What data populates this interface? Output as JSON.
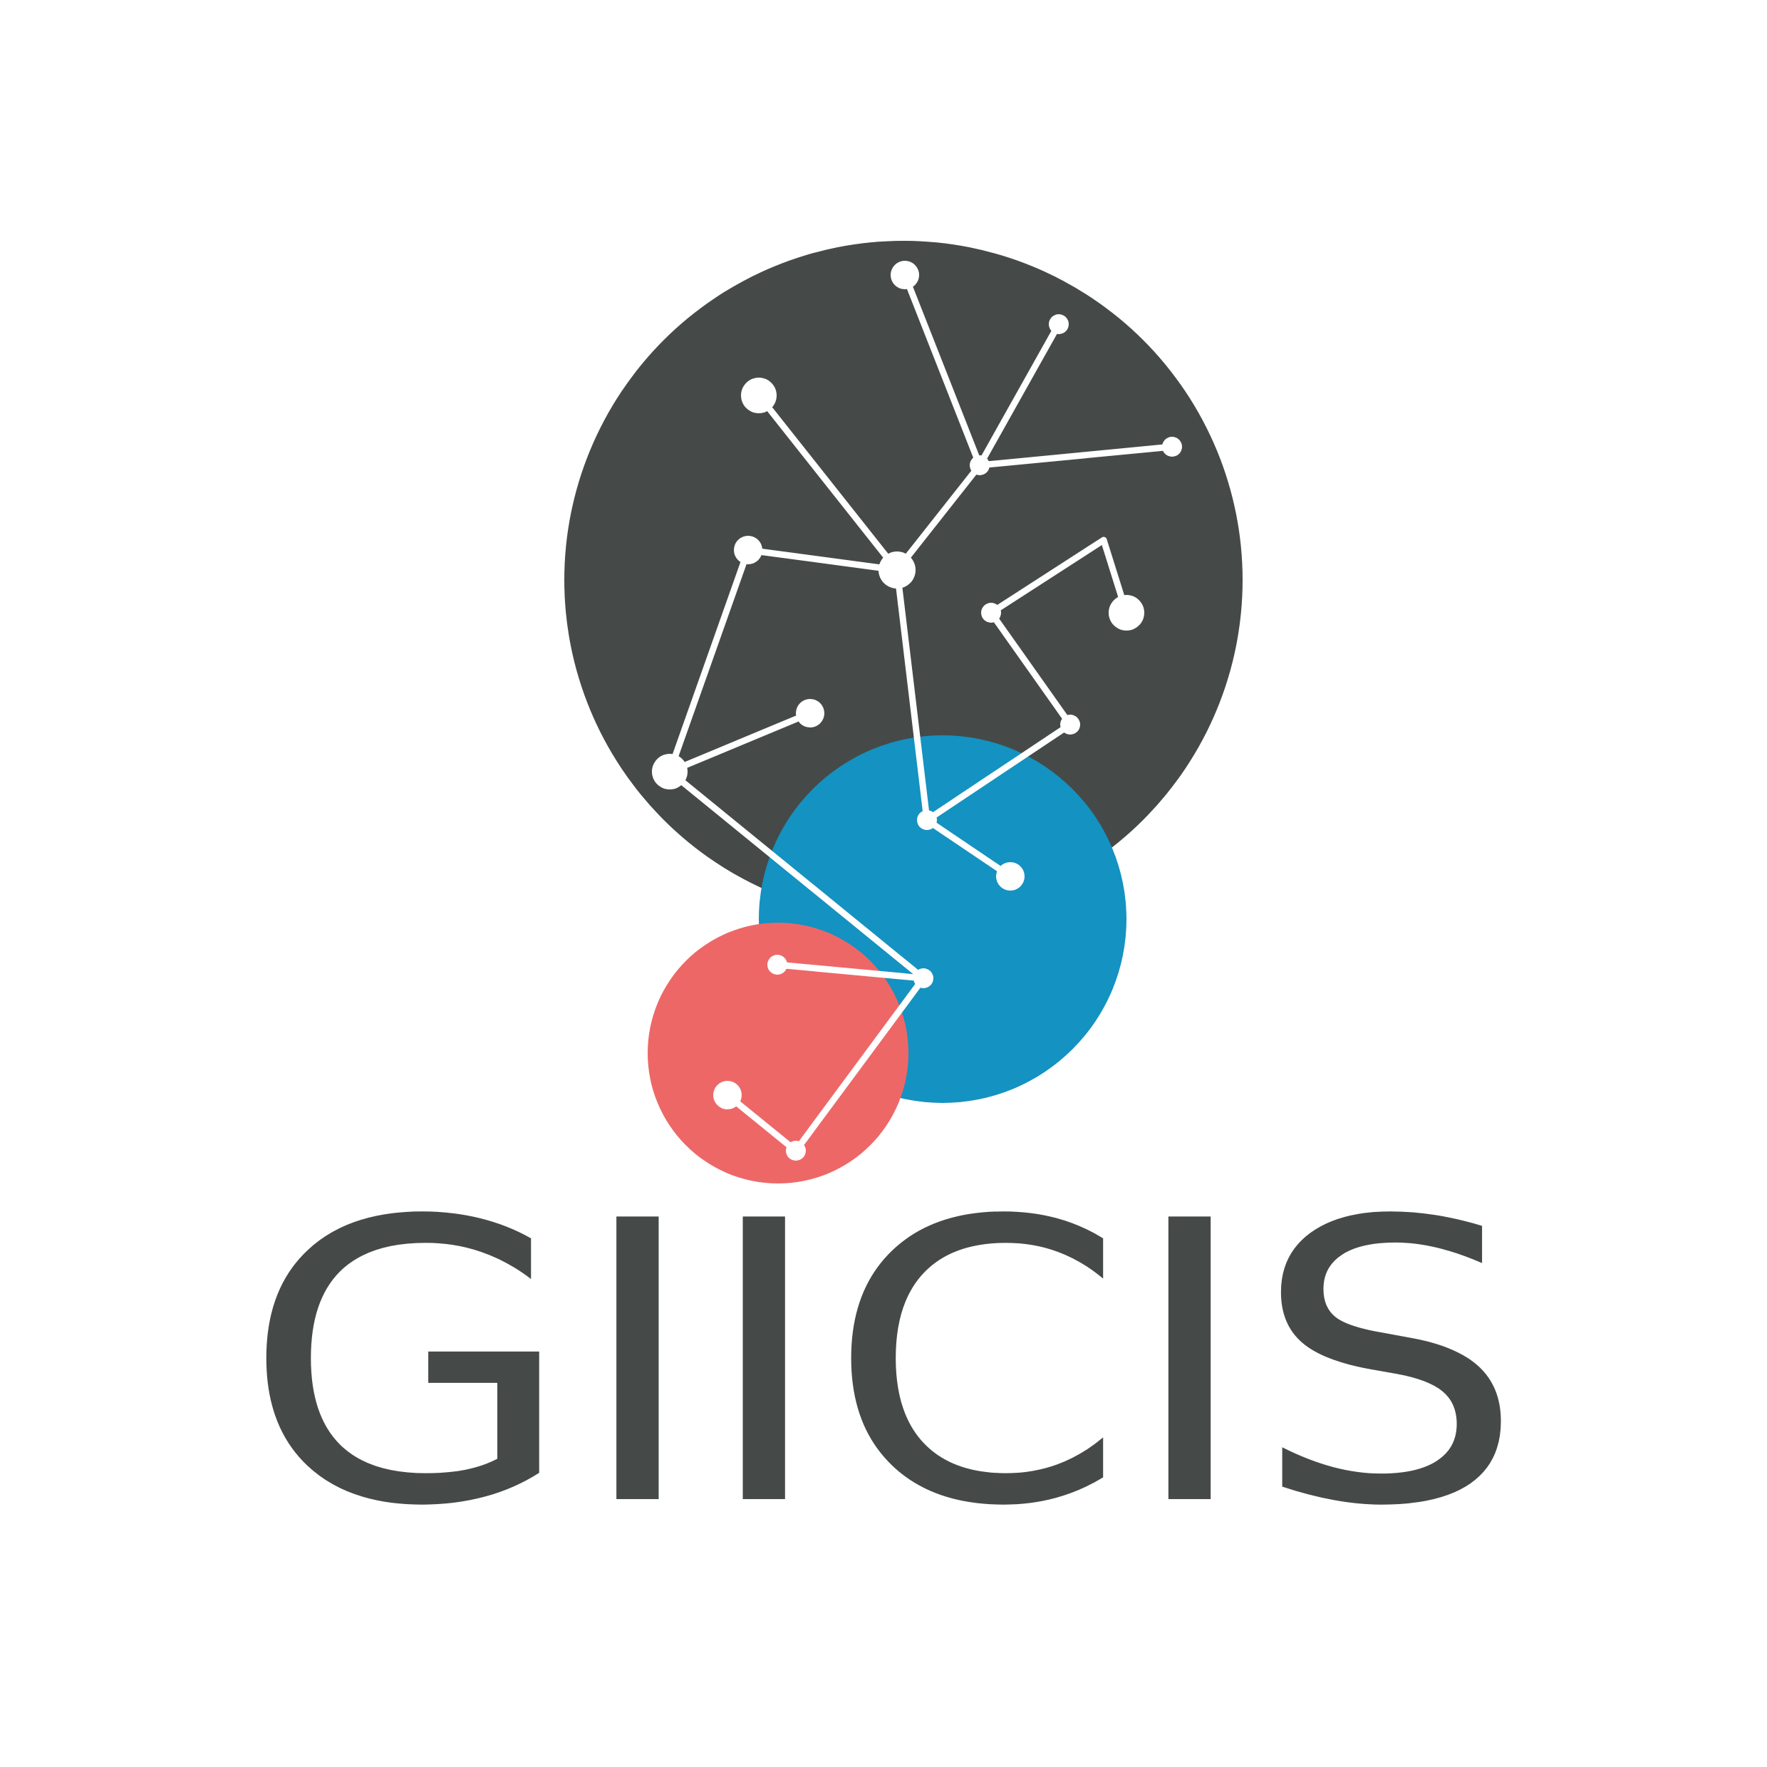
{
  "brand": {
    "name": "GIICIS"
  },
  "colors": {
    "background": "#ffffff",
    "dark": "#454a48",
    "blue": "#1492c1",
    "red": "#ee6767",
    "network": "#ffffff"
  },
  "logo": {
    "circles": [
      "dark-circle",
      "blue-circle",
      "red-circle"
    ],
    "graphic": "constellation-network"
  }
}
